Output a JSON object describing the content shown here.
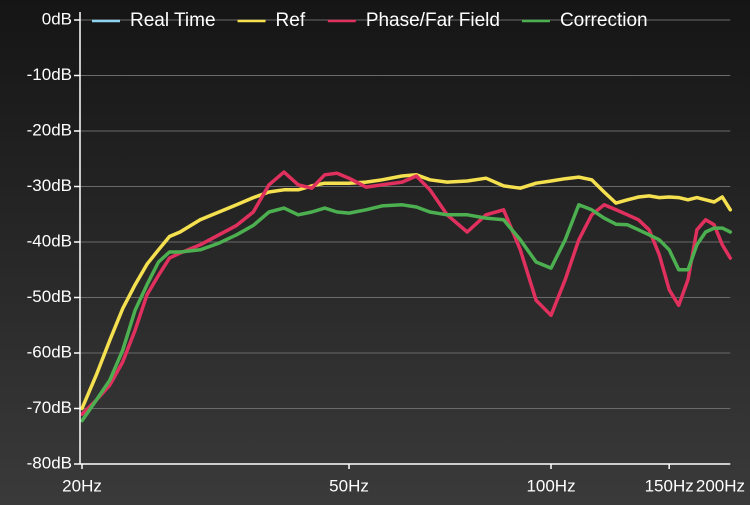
{
  "chart_data": {
    "type": "line",
    "log_x": true,
    "grid": true,
    "legend": "top",
    "x": [
      20,
      21,
      22,
      23,
      24,
      25,
      26,
      27,
      28,
      30,
      32,
      34,
      36,
      38,
      40,
      42,
      44,
      46,
      48,
      50,
      53,
      56,
      60,
      63,
      66,
      70,
      75,
      80,
      85,
      90,
      95,
      100,
      105,
      110,
      115,
      120,
      125,
      130,
      135,
      140,
      145,
      150,
      155,
      160,
      165,
      170,
      175,
      180,
      185
    ],
    "xlim": [
      20,
      185
    ],
    "xticks": [
      {
        "value": 20,
        "label": "20Hz"
      },
      {
        "value": 50,
        "label": "50Hz"
      },
      {
        "value": 100,
        "label": "100Hz"
      },
      {
        "value": 150,
        "label": "150Hz"
      },
      {
        "value": 200,
        "label": "200Hz"
      }
    ],
    "ylim": [
      -80,
      0
    ],
    "yticks": [
      {
        "value": 0,
        "label": "0dB"
      },
      {
        "value": -10,
        "label": "-10dB"
      },
      {
        "value": -20,
        "label": "-20dB"
      },
      {
        "value": -30,
        "label": "-30dB"
      },
      {
        "value": -40,
        "label": "-40dB"
      },
      {
        "value": -50,
        "label": "-50dB"
      },
      {
        "value": -60,
        "label": "-60dB"
      },
      {
        "value": -70,
        "label": "-70dB"
      },
      {
        "value": -80,
        "label": "-80dB"
      }
    ],
    "series": [
      {
        "name": "Real Time",
        "color": "#8fd3f0",
        "values": [
          null,
          null,
          null,
          null,
          null,
          null,
          null,
          null,
          null,
          null,
          null,
          null,
          null,
          null,
          null,
          null,
          null,
          null,
          null,
          null,
          null,
          null,
          null,
          null,
          null,
          null,
          null,
          null,
          null,
          null,
          null,
          null,
          null,
          null,
          null,
          null,
          null,
          null,
          null,
          null,
          null,
          null,
          null,
          null,
          null,
          null,
          null,
          null,
          null
        ]
      },
      {
        "name": "Ref",
        "color": "#f5e050",
        "values": [
          -70,
          -64,
          -57.7,
          -52,
          -47.7,
          -44,
          -41.4,
          -39,
          -38.2,
          -36,
          -34.6,
          -33.3,
          -32,
          -31,
          -30.6,
          -30.6,
          -29.9,
          -29.4,
          -29.4,
          -29.4,
          -29.2,
          -28.8,
          -28.1,
          -27.9,
          -28.8,
          -29.2,
          -29,
          -28.5,
          -29.9,
          -30.3,
          -29.4,
          -29,
          -28.6,
          -28.3,
          -28.8,
          -31,
          -33,
          -32.4,
          -31.9,
          -31.7,
          -32,
          -31.9,
          -32,
          -32.4,
          -32,
          -32.4,
          -32.8,
          -31.9,
          -34.2
        ]
      },
      {
        "name": "Phase/Far Field",
        "color": "#e0305e",
        "values": [
          -71,
          -68.5,
          -65.8,
          -61.6,
          -55.9,
          -49.5,
          -46,
          -42.9,
          -42,
          -40.5,
          -38.7,
          -37,
          -34.6,
          -29.7,
          -27.4,
          -29.7,
          -30.3,
          -27.9,
          -27.6,
          -28.5,
          -30.1,
          -29.7,
          -29.2,
          -28.1,
          -30.6,
          -35.1,
          -38.2,
          -35.1,
          -34.2,
          -41.4,
          -50.5,
          -53.2,
          -46.8,
          -39.6,
          -35.1,
          -33.3,
          -34.2,
          -35.1,
          -36,
          -37.8,
          -42.3,
          -48.6,
          -51.4,
          -46.8,
          -37.8,
          -36,
          -36.9,
          -40.5,
          -42.9
        ]
      },
      {
        "name": "Correction",
        "color": "#4caf50",
        "values": [
          -72.2,
          -68.5,
          -64.9,
          -59.5,
          -52.3,
          -47.7,
          -43.6,
          -41.8,
          -41.8,
          -41.4,
          -40.2,
          -38.7,
          -37,
          -34.6,
          -33.9,
          -35.1,
          -34.6,
          -33.9,
          -34.6,
          -34.8,
          -34.2,
          -33.5,
          -33.3,
          -33.7,
          -34.6,
          -35.1,
          -35.1,
          -35.7,
          -36,
          -39.6,
          -43.6,
          -44.7,
          -39.6,
          -33.3,
          -34.2,
          -35.7,
          -36.8,
          -36.9,
          -37.8,
          -38.7,
          -39.6,
          -41.4,
          -45,
          -45,
          -40.5,
          -38.2,
          -37.5,
          -37.5,
          -38.2
        ]
      }
    ]
  }
}
